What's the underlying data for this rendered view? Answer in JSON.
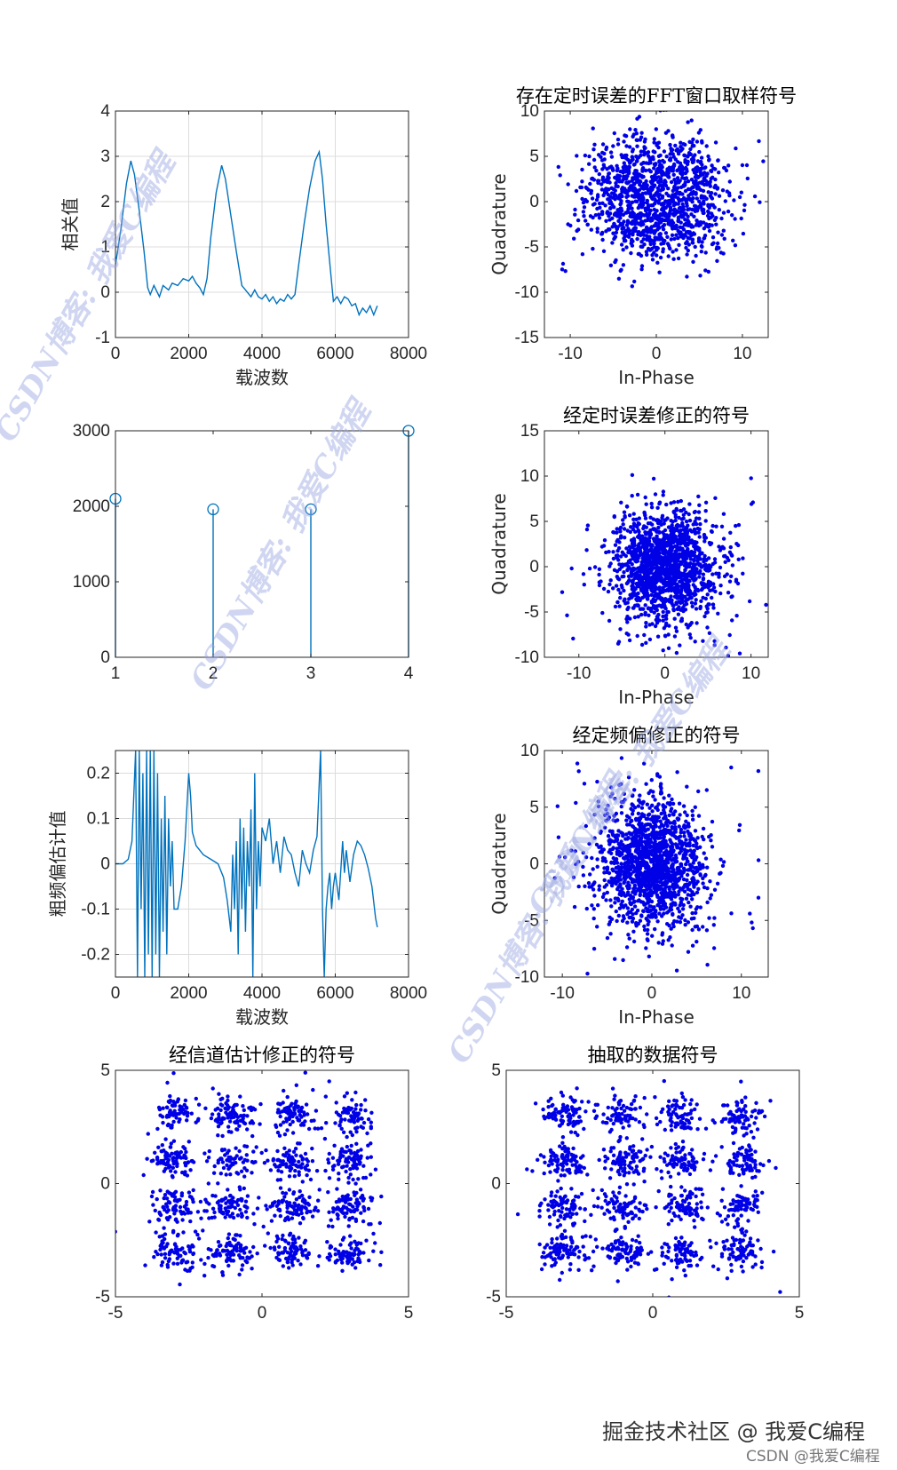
{
  "colors": {
    "line": "#0072BD",
    "scatter": "#0000E6",
    "axis": "#262626",
    "grid": "#DCDCDC"
  },
  "watermarks": [
    "CSDN博客: 我爱C编程",
    "CSDN博客: 我爱C编程",
    "CSDN博客: 我爱C编程",
    "CSDN博客: 我爱C编程"
  ],
  "footer": {
    "main": "掘金技术社区 @ 我爱C编程",
    "sub": "CSDN @我爱C编程"
  },
  "chart_data": [
    {
      "id": "corr",
      "type": "line",
      "title": "",
      "xlabel": "载波数",
      "ylabel": "相关值",
      "xlim": [
        0,
        8000
      ],
      "ylim": [
        -1,
        4
      ],
      "xticks": [
        0,
        2000,
        4000,
        6000,
        8000
      ],
      "yticks": [
        -1,
        0,
        1,
        2,
        3,
        4
      ],
      "xticklabels": [
        "0",
        "2000",
        "4000",
        "6000",
        "8000"
      ],
      "yticklabels": [
        "-1",
        "0",
        "1",
        "2",
        "3",
        "4"
      ],
      "grid": true,
      "series": [
        {
          "name": "相关值",
          "points": [
            [
              0,
              0.6
            ],
            [
              150,
              1.4
            ],
            [
              300,
              2.4
            ],
            [
              420,
              2.9
            ],
            [
              520,
              2.6
            ],
            [
              650,
              1.8
            ],
            [
              780,
              0.9
            ],
            [
              880,
              0.1
            ],
            [
              950,
              -0.05
            ],
            [
              1050,
              0.15
            ],
            [
              1200,
              -0.1
            ],
            [
              1300,
              0.15
            ],
            [
              1450,
              0.05
            ],
            [
              1550,
              0.2
            ],
            [
              1700,
              0.15
            ],
            [
              1850,
              0.3
            ],
            [
              2000,
              0.25
            ],
            [
              2100,
              0.35
            ],
            [
              2200,
              0.2
            ],
            [
              2300,
              0.1
            ],
            [
              2400,
              -0.05
            ],
            [
              2500,
              0.3
            ],
            [
              2600,
              1.2
            ],
            [
              2750,
              2.2
            ],
            [
              2900,
              2.8
            ],
            [
              3000,
              2.5
            ],
            [
              3150,
              1.7
            ],
            [
              3300,
              0.9
            ],
            [
              3450,
              0.15
            ],
            [
              3550,
              0.05
            ],
            [
              3700,
              -0.1
            ],
            [
              3800,
              0.05
            ],
            [
              3900,
              -0.1
            ],
            [
              4000,
              -0.15
            ],
            [
              4100,
              -0.05
            ],
            [
              4200,
              -0.2
            ],
            [
              4300,
              -0.1
            ],
            [
              4400,
              -0.25
            ],
            [
              4500,
              -0.15
            ],
            [
              4600,
              -0.2
            ],
            [
              4700,
              -0.05
            ],
            [
              4800,
              -0.15
            ],
            [
              4900,
              -0.05
            ],
            [
              5000,
              0.6
            ],
            [
              5150,
              1.5
            ],
            [
              5300,
              2.3
            ],
            [
              5450,
              2.9
            ],
            [
              5560,
              3.1
            ],
            [
              5650,
              2.5
            ],
            [
              5750,
              1.5
            ],
            [
              5880,
              0.4
            ],
            [
              5950,
              -0.2
            ],
            [
              6050,
              -0.1
            ],
            [
              6150,
              -0.25
            ],
            [
              6250,
              -0.1
            ],
            [
              6350,
              -0.15
            ],
            [
              6450,
              -0.3
            ],
            [
              6550,
              -0.25
            ],
            [
              6650,
              -0.5
            ],
            [
              6750,
              -0.35
            ],
            [
              6850,
              -0.45
            ],
            [
              6950,
              -0.3
            ],
            [
              7050,
              -0.5
            ],
            [
              7150,
              -0.3
            ]
          ]
        }
      ]
    },
    {
      "id": "stem",
      "type": "stem",
      "title": "",
      "xlabel": "",
      "ylabel": "",
      "xlim": [
        1,
        4
      ],
      "ylim": [
        0,
        3000
      ],
      "xticks": [
        1,
        2,
        3,
        4
      ],
      "yticks": [
        0,
        1000,
        2000,
        3000
      ],
      "xticklabels": [
        "1",
        "2",
        "3",
        "4"
      ],
      "yticklabels": [
        "0",
        "1000",
        "2000",
        "3000"
      ],
      "grid": false,
      "x": [
        1,
        2,
        3,
        4
      ],
      "values": [
        2100,
        1960,
        1960,
        3000
      ]
    },
    {
      "id": "freq",
      "type": "line",
      "title": "",
      "xlabel": "载波数",
      "ylabel": "粗频偏估计值",
      "xlim": [
        0,
        8000
      ],
      "ylim": [
        -0.25,
        0.25
      ],
      "xticks": [
        0,
        2000,
        4000,
        6000,
        8000
      ],
      "yticks": [
        -0.2,
        -0.1,
        0,
        0.1,
        0.2
      ],
      "xticklabels": [
        "0",
        "2000",
        "4000",
        "6000",
        "8000"
      ],
      "yticklabels": [
        "-0.2",
        "-0.1",
        "0",
        "0.1",
        "0.2"
      ],
      "grid": true,
      "series": [
        {
          "name": "粗频偏估计值",
          "points": [
            [
              0,
              0
            ],
            [
              200,
              0
            ],
            [
              350,
              0.01
            ],
            [
              450,
              0.05
            ],
            [
              550,
              0.25
            ],
            [
              600,
              -0.25
            ],
            [
              650,
              0.25
            ],
            [
              700,
              -0.1
            ],
            [
              750,
              0.2
            ],
            [
              800,
              -0.25
            ],
            [
              850,
              0.25
            ],
            [
              900,
              -0.2
            ],
            [
              950,
              0.25
            ],
            [
              1000,
              -0.25
            ],
            [
              1050,
              0.25
            ],
            [
              1100,
              -0.2
            ],
            [
              1150,
              0.2
            ],
            [
              1200,
              -0.25
            ],
            [
              1250,
              0.1
            ],
            [
              1300,
              -0.15
            ],
            [
              1350,
              0.15
            ],
            [
              1400,
              -0.2
            ],
            [
              1450,
              0.1
            ],
            [
              1500,
              -0.05
            ],
            [
              1550,
              0.05
            ],
            [
              1600,
              -0.1
            ],
            [
              1700,
              -0.1
            ],
            [
              1800,
              -0.05
            ],
            [
              1900,
              0.05
            ],
            [
              2000,
              0.2
            ],
            [
              2050,
              0.15
            ],
            [
              2100,
              0.07
            ],
            [
              2200,
              0.04
            ],
            [
              2400,
              0.02
            ],
            [
              2600,
              0.01
            ],
            [
              2800,
              0
            ],
            [
              2950,
              -0.03
            ],
            [
              3050,
              -0.08
            ],
            [
              3150,
              -0.15
            ],
            [
              3200,
              0.02
            ],
            [
              3250,
              -0.1
            ],
            [
              3300,
              0.05
            ],
            [
              3350,
              -0.2
            ],
            [
              3400,
              0.1
            ],
            [
              3450,
              -0.1
            ],
            [
              3500,
              0.08
            ],
            [
              3550,
              -0.15
            ],
            [
              3600,
              0.05
            ],
            [
              3650,
              -0.05
            ],
            [
              3700,
              0.12
            ],
            [
              3750,
              -0.25
            ],
            [
              3800,
              0.2
            ],
            [
              3850,
              -0.1
            ],
            [
              3900,
              0.05
            ],
            [
              3950,
              -0.05
            ],
            [
              4000,
              0.08
            ],
            [
              4100,
              0.05
            ],
            [
              4200,
              0.1
            ],
            [
              4300,
              0
            ],
            [
              4400,
              0.05
            ],
            [
              4500,
              -0.02
            ],
            [
              4600,
              0.06
            ],
            [
              4700,
              0.03
            ],
            [
              4800,
              0.02
            ],
            [
              4900,
              -0.02
            ],
            [
              5000,
              -0.05
            ],
            [
              5100,
              0.03
            ],
            [
              5200,
              0
            ],
            [
              5300,
              -0.02
            ],
            [
              5400,
              0.03
            ],
            [
              5500,
              0.06
            ],
            [
              5600,
              0.25
            ],
            [
              5650,
              -0.1
            ],
            [
              5700,
              -0.25
            ],
            [
              5750,
              -0.1
            ],
            [
              5800,
              -0.05
            ],
            [
              5850,
              -0.02
            ],
            [
              5900,
              -0.1
            ],
            [
              5950,
              -0.05
            ],
            [
              6000,
              -0.02
            ],
            [
              6100,
              -0.08
            ],
            [
              6200,
              0.05
            ],
            [
              6250,
              -0.02
            ],
            [
              6300,
              0.03
            ],
            [
              6400,
              -0.04
            ],
            [
              6500,
              0.02
            ],
            [
              6600,
              0.05
            ],
            [
              6700,
              0.04
            ],
            [
              6800,
              0.02
            ],
            [
              6900,
              -0.01
            ],
            [
              7000,
              -0.05
            ],
            [
              7100,
              -0.12
            ],
            [
              7150,
              -0.14
            ]
          ]
        }
      ]
    },
    {
      "id": "sc1",
      "type": "scatter",
      "title": "存在定时误差的FFT窗口取样符号",
      "xlabel": "In-Phase",
      "ylabel": "Quadrature",
      "xlim": [
        -13,
        13
      ],
      "ylim": [
        -15,
        10
      ],
      "xticks": [
        -10,
        0,
        10
      ],
      "yticks": [
        -15,
        -10,
        -5,
        0,
        5,
        10
      ],
      "xticklabels": [
        "-10",
        "0",
        "10"
      ],
      "yticklabels": [
        "-15",
        "-10",
        "-5",
        "0",
        "5",
        "10"
      ],
      "grid": false,
      "dist": {
        "pattern": "ring",
        "count": 1300,
        "center": [
          0,
          0.5
        ],
        "spread": 4.2,
        "seed": 11
      }
    },
    {
      "id": "sc2",
      "type": "scatter",
      "title": "经定时误差修正的符号",
      "xlabel": "In-Phase",
      "ylabel": "Quadrature",
      "xlim": [
        -14,
        12
      ],
      "ylim": [
        -10,
        15
      ],
      "xticks": [
        -10,
        0,
        10
      ],
      "yticks": [
        -10,
        -5,
        0,
        5,
        10,
        15
      ],
      "xticklabels": [
        "-10",
        "0",
        "10"
      ],
      "yticklabels": [
        "-10",
        "-5",
        "0",
        "5",
        "10",
        "15"
      ],
      "grid": false,
      "dist": {
        "pattern": "gauss",
        "count": 1500,
        "center": [
          0,
          0
        ],
        "spread": 3.0,
        "seed": 23
      }
    },
    {
      "id": "sc3",
      "type": "scatter",
      "title": "经定频偏修正的符号",
      "xlabel": "In-Phase",
      "ylabel": "Quadrature",
      "xlim": [
        -12,
        13
      ],
      "ylim": [
        -10,
        10
      ],
      "xticks": [
        -10,
        0,
        10
      ],
      "yticks": [
        -10,
        -5,
        0,
        5,
        10
      ],
      "xticklabels": [
        "-10",
        "0",
        "10"
      ],
      "yticklabels": [
        "-10",
        "-5",
        "0",
        "5",
        "10"
      ],
      "grid": false,
      "dist": {
        "pattern": "gauss",
        "count": 1500,
        "center": [
          0,
          0
        ],
        "spread": 2.9,
        "seed": 37
      }
    },
    {
      "id": "sc4",
      "type": "scatter",
      "title": "经信道估计修正的符号",
      "xlabel": "",
      "ylabel": "",
      "xlim": [
        -5,
        5
      ],
      "ylim": [
        -5,
        5
      ],
      "xticks": [
        -5,
        0,
        5
      ],
      "yticks": [
        -5,
        0,
        5
      ],
      "xticklabels": [
        "-5",
        "0",
        "5"
      ],
      "yticklabels": [
        "-5",
        "0",
        "5"
      ],
      "grid": false,
      "dist": {
        "pattern": "qam16",
        "count": 1300,
        "levels": [
          -3,
          -1,
          1,
          3
        ],
        "spread": 0.38,
        "seed": 51
      }
    },
    {
      "id": "sc5",
      "type": "scatter",
      "title": "抽取的数据符号",
      "xlabel": "",
      "ylabel": "",
      "xlim": [
        -5,
        5
      ],
      "ylim": [
        -5,
        5
      ],
      "xticks": [
        -5,
        0,
        5
      ],
      "yticks": [
        -5,
        0,
        5
      ],
      "xticklabels": [
        "-5",
        "0",
        "5"
      ],
      "yticklabels": [
        "-5",
        "0",
        "5"
      ],
      "grid": false,
      "dist": {
        "pattern": "qam16",
        "count": 1300,
        "levels": [
          -3,
          -1,
          1,
          3
        ],
        "spread": 0.38,
        "seed": 67
      }
    }
  ]
}
